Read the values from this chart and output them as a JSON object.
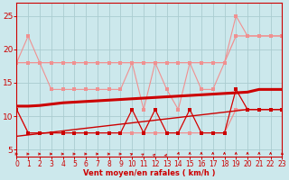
{
  "x": [
    0,
    1,
    2,
    3,
    4,
    5,
    6,
    7,
    8,
    9,
    10,
    11,
    12,
    13,
    14,
    15,
    16,
    17,
    18,
    19,
    20,
    21,
    22,
    23
  ],
  "line_gust_envelope": [
    18,
    18,
    18,
    18,
    18,
    18,
    18,
    18,
    18,
    18,
    18,
    18,
    18,
    18,
    18,
    18,
    18,
    18,
    18,
    22,
    22,
    22,
    22,
    22
  ],
  "line_gust_jagged": [
    18,
    22,
    18,
    14,
    14,
    14,
    14,
    14,
    14,
    14,
    18,
    11,
    18,
    14,
    11,
    18,
    14,
    14,
    18,
    25,
    22,
    22,
    22,
    22
  ],
  "line_mean_envelope": [
    11,
    7.5,
    7.5,
    7.5,
    7.5,
    7.5,
    7.5,
    7.5,
    7.5,
    7.5,
    7.5,
    7.5,
    7.5,
    7.5,
    7.5,
    7.5,
    7.5,
    7.5,
    7.5,
    11,
    11,
    11,
    11,
    11
  ],
  "line_mean_jagged": [
    11,
    7.5,
    7.5,
    7.5,
    7.5,
    7.5,
    7.5,
    7.5,
    7.5,
    7.5,
    11,
    7.5,
    11,
    7.5,
    7.5,
    11,
    7.5,
    7.5,
    7.5,
    14,
    11,
    11,
    11,
    11
  ],
  "trend_thick": [
    11.5,
    11.5,
    11.6,
    11.8,
    12.0,
    12.1,
    12.2,
    12.3,
    12.4,
    12.5,
    12.6,
    12.7,
    12.8,
    12.9,
    13.0,
    13.1,
    13.2,
    13.3,
    13.4,
    13.5,
    13.6,
    14.0,
    14.0,
    14.0
  ],
  "trend_thin": [
    7.0,
    7.2,
    7.4,
    7.6,
    7.8,
    8.0,
    8.2,
    8.4,
    8.6,
    8.8,
    9.0,
    9.2,
    9.4,
    9.6,
    9.8,
    10.0,
    10.2,
    10.4,
    10.6,
    10.8,
    11.0,
    11.0,
    11.0,
    11.0
  ],
  "line_mean_dark_jagged": [
    11,
    7.5,
    7.5,
    7.5,
    7.5,
    7.5,
    7.5,
    7.5,
    7.5,
    7.5,
    11,
    7.5,
    11,
    7.5,
    7.5,
    11,
    7.5,
    7.5,
    7.5,
    14,
    11,
    11,
    11,
    11
  ],
  "color_light": "#f09090",
  "color_dark": "#cc0000",
  "color_dark2": "#dd2222",
  "bg_color": "#cce8ec",
  "grid_color": "#aaccd0",
  "xlabel": "Vent moyen/en rafales ( km/h )",
  "ylim": [
    4,
    27
  ],
  "xlim": [
    0,
    23
  ],
  "yticks": [
    5,
    10,
    15,
    20,
    25
  ],
  "xticks": [
    0,
    1,
    2,
    3,
    4,
    5,
    6,
    7,
    8,
    9,
    10,
    11,
    12,
    13,
    14,
    15,
    16,
    17,
    18,
    19,
    20,
    21,
    22,
    23
  ],
  "arrow_angles": [
    0,
    0,
    0,
    0,
    0,
    0,
    0,
    0,
    0,
    0,
    30,
    45,
    60,
    70,
    80,
    90,
    90,
    90,
    90,
    90,
    90,
    90,
    90,
    90
  ]
}
